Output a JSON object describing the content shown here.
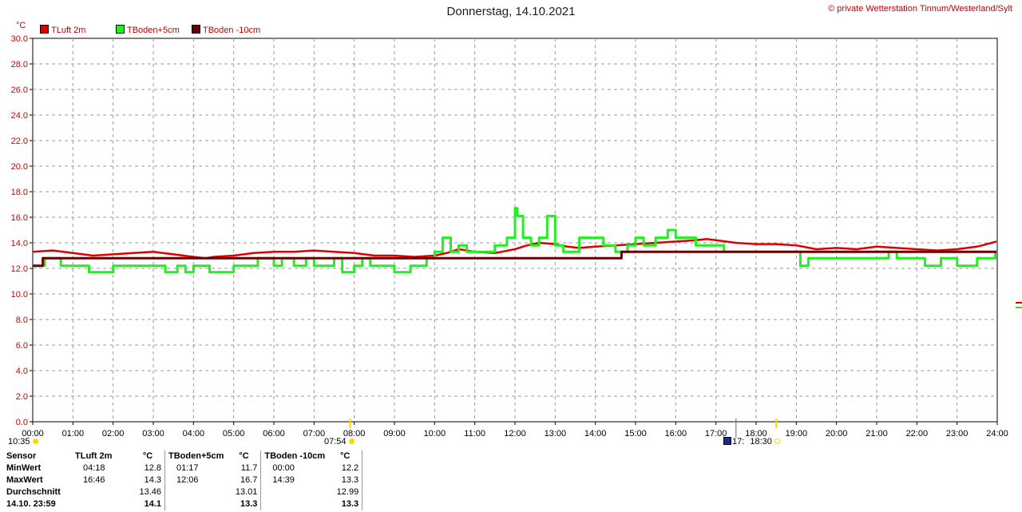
{
  "header": {
    "title": "Donnerstag, 14.10.2021",
    "copyright": "© private Wetterstation Tinnum/Westerland/Sylt",
    "unit": "°C"
  },
  "markers": {
    "sunrise_time": "10:35",
    "sunset_time": "07:54",
    "moon_label": "17:",
    "moon_time": "18:30"
  },
  "colors": {
    "tluft": "#dd0000",
    "tboden5": "#22ee22",
    "tboden10": "#6b0000",
    "axis_text": "#cc0000",
    "grid": "#9a9a9a",
    "sun": "#ffd700"
  },
  "chart_data": {
    "type": "line",
    "title": "Donnerstag, 14.10.2021",
    "ylabel": "°C",
    "xlabel": "",
    "ylim": [
      0,
      30
    ],
    "xlim": [
      0,
      24
    ],
    "grid": true,
    "legend_position": "top-left",
    "x_tick_labels": [
      "00:00",
      "01:00",
      "02:00",
      "03:00",
      "04:00",
      "05:00",
      "06:00",
      "07:00",
      "08:00",
      "09:00",
      "10:00",
      "11:00",
      "12:00",
      "13:00",
      "14:00",
      "15:00",
      "16:00",
      "17:00",
      "18:00",
      "19:00",
      "20:00",
      "21:00",
      "22:00",
      "23:00",
      "24:00"
    ],
    "y_tick_labels": [
      "0.0",
      "2.0",
      "4.0",
      "6.0",
      "8.0",
      "10.0",
      "12.0",
      "14.0",
      "16.0",
      "18.0",
      "20.0",
      "22.0",
      "24.0",
      "26.0",
      "28.0",
      "30.0"
    ],
    "series": [
      {
        "name": "TLuft 2m",
        "color": "#dd0000",
        "x": [
          0,
          0.5,
          1.0,
          1.5,
          2.0,
          2.5,
          3.0,
          3.5,
          4.0,
          4.3,
          4.5,
          5.0,
          5.5,
          6.0,
          6.5,
          7.0,
          7.5,
          8.0,
          8.5,
          9.0,
          9.5,
          10.0,
          10.3,
          10.6,
          11.0,
          11.5,
          12.0,
          12.3,
          12.6,
          13.0,
          13.3,
          13.6,
          14.0,
          14.5,
          15.0,
          15.5,
          16.0,
          16.5,
          16.77,
          17.0,
          17.5,
          18.0,
          18.5,
          19.0,
          19.5,
          20.0,
          20.5,
          21.0,
          21.5,
          22.0,
          22.5,
          23.0,
          23.5,
          23.98
        ],
        "y": [
          13.3,
          13.4,
          13.2,
          13.0,
          13.1,
          13.2,
          13.3,
          13.1,
          12.9,
          12.8,
          12.9,
          13.0,
          13.2,
          13.3,
          13.3,
          13.4,
          13.3,
          13.2,
          13.0,
          13.0,
          12.9,
          13.0,
          13.2,
          13.5,
          13.3,
          13.2,
          13.5,
          13.8,
          14.0,
          13.9,
          13.7,
          13.6,
          13.7,
          13.8,
          13.9,
          14.0,
          14.1,
          14.2,
          14.3,
          14.2,
          14.0,
          13.9,
          13.9,
          13.8,
          13.5,
          13.6,
          13.5,
          13.7,
          13.6,
          13.5,
          13.4,
          13.5,
          13.7,
          14.1
        ]
      },
      {
        "name": "TBoden+5cm",
        "color": "#22ee22",
        "x": [
          0,
          0.2,
          0.3,
          0.6,
          0.7,
          1.0,
          1.3,
          1.4,
          2.0,
          2.3,
          3.0,
          3.3,
          3.6,
          3.8,
          4.0,
          4.3,
          4.4,
          5.0,
          5.5,
          5.6,
          6.0,
          6.2,
          6.5,
          6.8,
          7.0,
          7.2,
          7.5,
          7.7,
          8.0,
          8.2,
          8.4,
          8.8,
          9.0,
          9.4,
          9.6,
          9.8,
          10.0,
          10.2,
          10.4,
          10.6,
          10.8,
          11.0,
          11.2,
          11.5,
          11.8,
          12.0,
          12.06,
          12.2,
          12.4,
          12.6,
          12.8,
          13.0,
          13.2,
          13.6,
          14.0,
          14.2,
          14.5,
          14.8,
          15.0,
          15.2,
          15.5,
          15.8,
          16.0,
          16.2,
          16.5,
          16.8,
          17.0,
          17.2,
          17.3,
          19.0,
          19.1,
          19.3,
          20.0,
          20.5,
          21.0,
          21.3,
          21.5,
          21.8,
          22.0,
          22.2,
          22.4,
          22.6,
          22.8,
          23.0,
          23.5,
          23.8,
          23.95
        ],
        "y": [
          12.2,
          12.2,
          12.8,
          12.8,
          12.2,
          12.2,
          12.2,
          11.7,
          12.2,
          12.2,
          12.2,
          11.7,
          12.2,
          11.7,
          12.2,
          12.2,
          11.7,
          12.2,
          12.2,
          12.8,
          12.2,
          12.8,
          12.2,
          12.8,
          12.2,
          12.2,
          12.8,
          11.7,
          12.2,
          12.8,
          12.2,
          12.2,
          11.7,
          12.2,
          12.2,
          12.8,
          13.3,
          14.4,
          13.3,
          13.8,
          13.3,
          13.3,
          13.3,
          13.8,
          14.4,
          16.7,
          16.1,
          14.4,
          13.8,
          14.4,
          16.1,
          13.8,
          13.3,
          14.4,
          14.4,
          13.8,
          13.3,
          13.8,
          14.4,
          13.8,
          14.4,
          15.0,
          14.4,
          14.4,
          13.8,
          13.8,
          13.8,
          13.3,
          13.3,
          13.3,
          12.2,
          12.8,
          12.8,
          12.8,
          12.8,
          13.3,
          12.8,
          12.8,
          12.8,
          12.2,
          12.2,
          12.8,
          12.8,
          12.2,
          12.8,
          12.8,
          13.3
        ]
      },
      {
        "name": "TBoden -10cm",
        "color": "#6b0000",
        "x": [
          0,
          0.2,
          0.25,
          14.6,
          14.65,
          23.98
        ],
        "y": [
          12.2,
          12.2,
          12.8,
          12.8,
          13.3,
          13.3
        ]
      }
    ]
  },
  "stats": {
    "headers": [
      "Sensor",
      "TLuft 2m",
      "°C",
      "TBoden+5cm",
      "°C",
      "TBoden -10cm",
      "°C"
    ],
    "rows": [
      {
        "label": "MinWert",
        "c1t": "04:18",
        "c1v": "12.8",
        "c2t": "01:17",
        "c2v": "11.7",
        "c3t": "00:00",
        "c3v": "12.2"
      },
      {
        "label": "MaxWert",
        "c1t": "16:46",
        "c1v": "14.3",
        "c2t": "12:06",
        "c2v": "16.7",
        "c3t": "14:39",
        "c3v": "13.3"
      },
      {
        "label": "Durchschnitt",
        "c1t": "",
        "c1v": "13.46",
        "c2t": "",
        "c2v": "13.01",
        "c3t": "",
        "c3v": "12.99"
      },
      {
        "label": "14.10. 23:59",
        "c1t": "",
        "c1v": "14.1",
        "c2t": "",
        "c2v": "13.3",
        "c3t": "",
        "c3v": "13.3"
      }
    ]
  }
}
